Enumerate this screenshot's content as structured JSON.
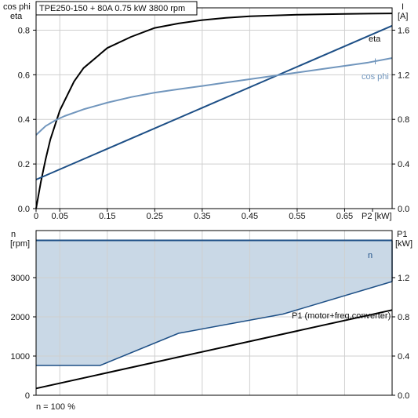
{
  "header": {
    "text": "TPE250-150 + 80A   0.75 kW   3800 rpm"
  },
  "footer": {
    "text": "n = 100 %"
  },
  "colors": {
    "axis": "#000000",
    "grid": "#cfcfcf",
    "eta": "#000000",
    "current": "#1d4f86",
    "cosphi": "#7196bd",
    "speed_line": "#1d4f86",
    "speed_fill": "#c9d8e6",
    "power": "#000000"
  },
  "chart_data": [
    {
      "type": "line",
      "title": "TPE250-150 + 80A   0.75 kW   3800 rpm",
      "xlabel": "P2 [kW]",
      "ylabel_left_lines": [
        "cos phi",
        "eta"
      ],
      "ylabel_right_lines": [
        "I",
        "[A]"
      ],
      "xlim": [
        0,
        0.75
      ],
      "x_ticks": [
        0,
        0.05,
        0.15,
        0.25,
        0.35,
        0.45,
        0.55,
        0.65
      ],
      "x_tick_labels": [
        "0",
        "0.05",
        "0.15",
        "0.25",
        "0.35",
        "0.45",
        "0.55",
        "0.65"
      ],
      "ylim_left": [
        0,
        0.9
      ],
      "y_left_ticks": [
        0,
        0.2,
        0.4,
        0.6,
        0.8
      ],
      "y_left_tick_labels": [
        "0.0",
        "0.2",
        "0.4",
        "0.6",
        "0.8"
      ],
      "ylim_right": [
        0,
        1.8
      ],
      "y_right_ticks": [
        0,
        0.4,
        0.8,
        1.2,
        1.6
      ],
      "y_right_tick_labels": [
        "0.0",
        "0.4",
        "0.8",
        "1.2",
        "1.6"
      ],
      "grid": true,
      "series": [
        {
          "name": "eta",
          "axis": "left",
          "x": [
            0,
            0.01,
            0.02,
            0.03,
            0.05,
            0.08,
            0.1,
            0.15,
            0.2,
            0.25,
            0.3,
            0.35,
            0.4,
            0.45,
            0.5,
            0.55,
            0.6,
            0.65,
            0.7,
            0.75
          ],
          "y": [
            0,
            0.12,
            0.22,
            0.31,
            0.44,
            0.57,
            0.63,
            0.72,
            0.77,
            0.81,
            0.83,
            0.845,
            0.855,
            0.862,
            0.866,
            0.869,
            0.871,
            0.873,
            0.874,
            0.875
          ]
        },
        {
          "name": "I",
          "axis": "right",
          "x": [
            0,
            0.75
          ],
          "y": [
            0.26,
            1.64
          ]
        },
        {
          "name": "cos phi",
          "axis": "left",
          "x": [
            0,
            0.01,
            0.02,
            0.04,
            0.06,
            0.1,
            0.15,
            0.2,
            0.25,
            0.3,
            0.35,
            0.4,
            0.45,
            0.5,
            0.55,
            0.6,
            0.65,
            0.7,
            0.75
          ],
          "y": [
            0.33,
            0.35,
            0.37,
            0.395,
            0.415,
            0.445,
            0.475,
            0.5,
            0.52,
            0.535,
            0.55,
            0.565,
            0.58,
            0.595,
            0.61,
            0.625,
            0.64,
            0.655,
            0.675
          ]
        }
      ]
    },
    {
      "type": "area",
      "xlabel": "",
      "ylabel_left_lines": [
        "n",
        "[rpm]"
      ],
      "ylabel_right_lines": [
        "P1",
        "[kW]"
      ],
      "xlim": [
        0,
        0.75
      ],
      "ylim_left": [
        0,
        4200
      ],
      "y_left_ticks": [
        0,
        1000,
        2000,
        3000
      ],
      "y_left_tick_labels": [
        "0",
        "1000",
        "2000",
        "3000"
      ],
      "ylim_right": [
        0,
        1.68
      ],
      "y_right_ticks": [
        0,
        0.4,
        0.8,
        1.2
      ],
      "y_right_tick_labels": [
        "0.0",
        "0.4",
        "0.8",
        "1.2"
      ],
      "grid": true,
      "speed_range": {
        "name": "n",
        "x": [
          0,
          0.75
        ],
        "max_rpm": [
          3950,
          3950
        ],
        "min_x": [
          0,
          0.135,
          0.3,
          0.52,
          0.75
        ],
        "min_rpm": [
          760,
          760,
          1580,
          2070,
          2900
        ]
      },
      "series": [
        {
          "name": "P1 (motor+freq.converter)",
          "axis": "right",
          "x": [
            0,
            0.75
          ],
          "y": [
            0.07,
            0.87
          ]
        }
      ]
    }
  ]
}
